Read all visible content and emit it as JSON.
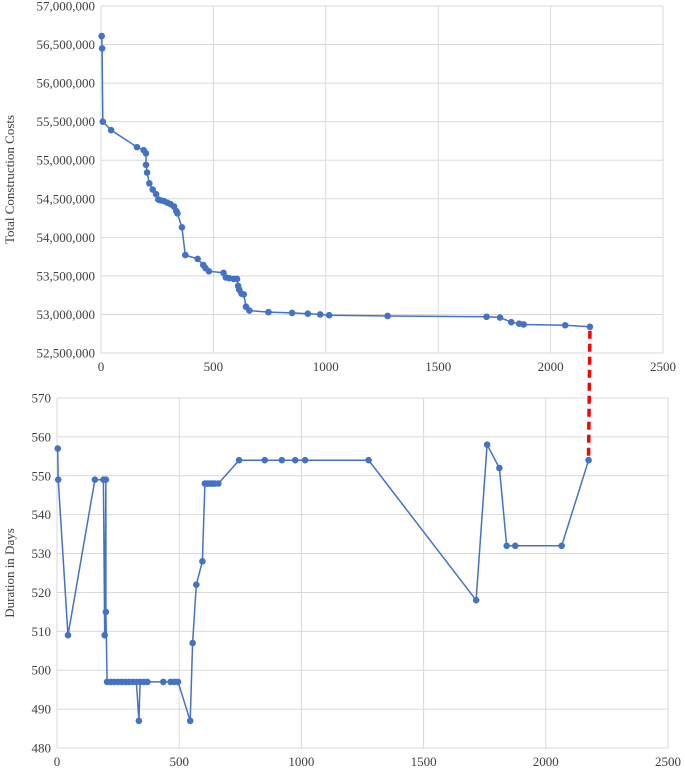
{
  "chart_data": [
    {
      "type": "line",
      "ylabel": "Total Construction Costs",
      "xlim": [
        0,
        2500
      ],
      "ylim": [
        52500000,
        57000000
      ],
      "xticks": [
        0,
        500,
        1000,
        1500,
        2000,
        2500
      ],
      "yticks": [
        52500000,
        53000000,
        53500000,
        54000000,
        54500000,
        55000000,
        55500000,
        56000000,
        56500000,
        57000000
      ],
      "ytick_labels": [
        "52,500,000",
        "53,000,000",
        "53,500,000",
        "54,000,000",
        "54,500,000",
        "55,000,000",
        "55,500,000",
        "56,000,000",
        "56,500,000",
        "57,000,000"
      ],
      "grid": true,
      "color": "#4472C4",
      "points": [
        [
          3,
          56610000
        ],
        [
          5,
          56450000
        ],
        [
          8,
          55500000
        ],
        [
          45,
          55390000
        ],
        [
          160,
          55170000
        ],
        [
          190,
          55130000
        ],
        [
          200,
          55090000
        ],
        [
          200,
          54940000
        ],
        [
          205,
          54840000
        ],
        [
          215,
          54700000
        ],
        [
          230,
          54620000
        ],
        [
          245,
          54560000
        ],
        [
          255,
          54490000
        ],
        [
          265,
          54480000
        ],
        [
          280,
          54470000
        ],
        [
          295,
          54450000
        ],
        [
          310,
          54430000
        ],
        [
          325,
          54400000
        ],
        [
          335,
          54340000
        ],
        [
          340,
          54310000
        ],
        [
          360,
          54130000
        ],
        [
          375,
          53770000
        ],
        [
          430,
          53720000
        ],
        [
          455,
          53640000
        ],
        [
          465,
          53600000
        ],
        [
          480,
          53560000
        ],
        [
          545,
          53540000
        ],
        [
          555,
          53480000
        ],
        [
          570,
          53470000
        ],
        [
          590,
          53460000
        ],
        [
          605,
          53460000
        ],
        [
          610,
          53370000
        ],
        [
          615,
          53320000
        ],
        [
          625,
          53270000
        ],
        [
          635,
          53260000
        ],
        [
          645,
          53100000
        ],
        [
          660,
          53050000
        ],
        [
          745,
          53030000
        ],
        [
          850,
          53020000
        ],
        [
          920,
          53010000
        ],
        [
          975,
          53000000
        ],
        [
          1015,
          52990000
        ],
        [
          1275,
          52980000
        ],
        [
          1715,
          52970000
        ],
        [
          1775,
          52960000
        ],
        [
          1825,
          52900000
        ],
        [
          1860,
          52880000
        ],
        [
          1880,
          52870000
        ],
        [
          2065,
          52860000
        ],
        [
          2175,
          52840000
        ]
      ]
    },
    {
      "type": "line",
      "ylabel": "Duration in Days",
      "xlim": [
        0,
        2500
      ],
      "ylim": [
        480,
        570
      ],
      "xticks": [
        0,
        500,
        1000,
        1500,
        2000,
        2500
      ],
      "yticks": [
        480,
        490,
        500,
        510,
        520,
        530,
        540,
        550,
        560,
        570
      ],
      "ytick_labels": [
        "480",
        "490",
        "500",
        "510",
        "520",
        "530",
        "540",
        "550",
        "560",
        "570"
      ],
      "grid": true,
      "color": "#4472C4",
      "points": [
        [
          3,
          557
        ],
        [
          5,
          549
        ],
        [
          45,
          509
        ],
        [
          155,
          549
        ],
        [
          190,
          549
        ],
        [
          195,
          509
        ],
        [
          200,
          549
        ],
        [
          200,
          515
        ],
        [
          205,
          497
        ],
        [
          220,
          497
        ],
        [
          235,
          497
        ],
        [
          250,
          497
        ],
        [
          265,
          497
        ],
        [
          280,
          497
        ],
        [
          295,
          497
        ],
        [
          310,
          497
        ],
        [
          325,
          497
        ],
        [
          335,
          487
        ],
        [
          340,
          497
        ],
        [
          355,
          497
        ],
        [
          370,
          497
        ],
        [
          435,
          497
        ],
        [
          465,
          497
        ],
        [
          480,
          497
        ],
        [
          495,
          497
        ],
        [
          545,
          487
        ],
        [
          555,
          507
        ],
        [
          570,
          522
        ],
        [
          595,
          528
        ],
        [
          605,
          548
        ],
        [
          615,
          548
        ],
        [
          625,
          548
        ],
        [
          635,
          548
        ],
        [
          645,
          548
        ],
        [
          660,
          548
        ],
        [
          745,
          554
        ],
        [
          850,
          554
        ],
        [
          920,
          554
        ],
        [
          975,
          554
        ],
        [
          1015,
          554
        ],
        [
          1275,
          554
        ],
        [
          1715,
          518
        ],
        [
          1760,
          558
        ],
        [
          1810,
          552
        ],
        [
          1840,
          532
        ],
        [
          1875,
          532
        ],
        [
          2065,
          532
        ],
        [
          2175,
          554
        ]
      ]
    }
  ],
  "connector": {
    "x": 2175,
    "color": "#FF0000"
  }
}
